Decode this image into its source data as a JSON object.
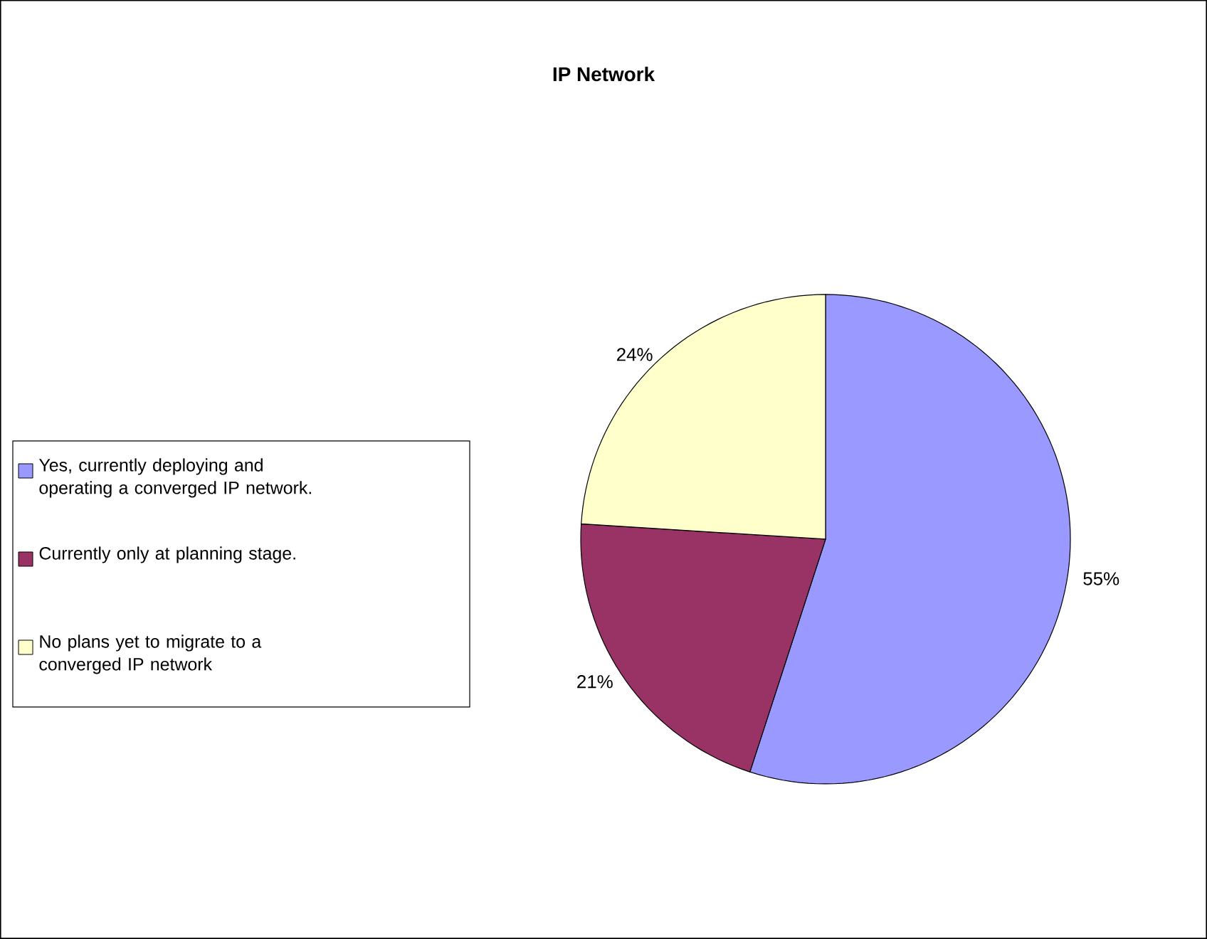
{
  "chart_data": {
    "type": "pie",
    "title": "IP Network",
    "categories": [
      "Yes, currently deploying and operating a converged IP network.",
      "Currently only at planning stage.",
      "No plans yet to migrate to a converged IP network"
    ],
    "values": [
      55,
      21,
      24
    ],
    "colors": [
      "#9999ff",
      "#993366",
      "#ffffcc"
    ],
    "value_labels": [
      "55%",
      "21%",
      "24%"
    ],
    "legend": "left"
  }
}
